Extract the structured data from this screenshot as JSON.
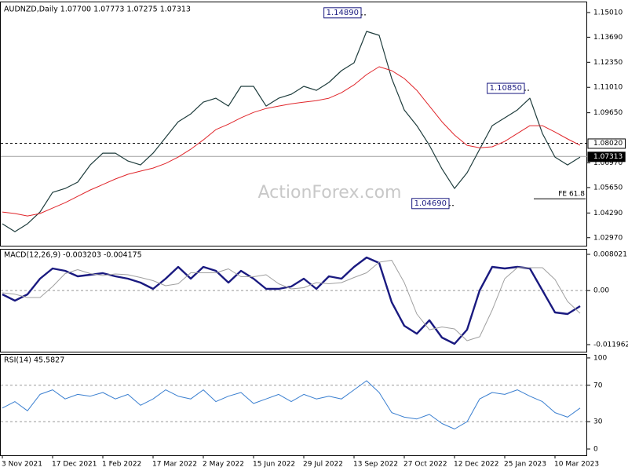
{
  "chart_data": [
    {
      "type": "line",
      "title": "AUDNZD,Daily  1.07700 1.07773 1.07275 1.07313",
      "watermark": "ActionForex.com",
      "categories": [
        "3 Nov 2021",
        null,
        null,
        null,
        "17 Dec 2021",
        null,
        null,
        null,
        "1 Feb 2022",
        null,
        null,
        null,
        "17 Mar 2022",
        null,
        null,
        null,
        "2 May 2022",
        null,
        null,
        null,
        "15 Jun 2022",
        null,
        null,
        null,
        "29 Jul 2022",
        null,
        null,
        null,
        "13 Sep 2022",
        null,
        null,
        null,
        "27 Oct 2022",
        null,
        null,
        null,
        "12 Dec 2022",
        null,
        null,
        null,
        "25 Jan 2023",
        null,
        null,
        null,
        "10 Mar 2023",
        null,
        null
      ],
      "series": [
        {
          "color": "#1e3c3c",
          "width": 1.2,
          "values": [
            1.0371,
            1.0329,
            1.0371,
            1.0434,
            1.0539,
            1.056,
            1.0594,
            1.0686,
            1.0749,
            1.0749,
            1.0707,
            1.0686,
            1.0749,
            1.0833,
            1.0917,
            1.0959,
            1.1022,
            1.1043,
            1.1001,
            1.1106,
            1.1106,
            1.1001,
            1.1043,
            1.1064,
            1.1106,
            1.1085,
            1.1127,
            1.119,
            1.1232,
            1.14,
            1.1379,
            1.1148,
            1.098,
            1.0896,
            1.0791,
            1.0665,
            1.056,
            1.0644,
            1.077,
            1.0896,
            1.0938,
            1.098,
            1.1043,
            1.0854,
            1.0728,
            1.0686,
            1.0728
          ]
        },
        {
          "color": "#e0262b",
          "width": 1,
          "values": [
            1.0434,
            1.0426,
            1.0413,
            1.0426,
            1.0455,
            1.0484,
            1.0518,
            1.0552,
            1.0581,
            1.0611,
            1.0636,
            1.0653,
            1.0669,
            1.0694,
            1.0728,
            1.077,
            1.082,
            1.0875,
            1.0904,
            1.0938,
            1.0967,
            1.0988,
            1.1001,
            1.1013,
            1.1022,
            1.103,
            1.1043,
            1.1072,
            1.1114,
            1.1169,
            1.1211,
            1.119,
            1.1148,
            1.1085,
            1.1001,
            1.0917,
            1.0846,
            1.0791,
            1.0778,
            1.0783,
            1.0812,
            1.0854,
            1.0896,
            1.0896,
            1.0862,
            1.0825,
            1.0791
          ]
        }
      ],
      "ylim": [
        1.0254,
        1.1547
      ],
      "yticks": [
        {
          "value": 1.1501,
          "label": "1.15010"
        },
        {
          "value": 1.1369,
          "label": "1.13690"
        },
        {
          "value": 1.1235,
          "label": "1.12350"
        },
        {
          "value": 1.1101,
          "label": "1.11010"
        },
        {
          "value": 1.0965,
          "label": "1.09650"
        },
        {
          "value": 1.0697,
          "label": "1.06970"
        },
        {
          "value": 1.0565,
          "label": "1.05650"
        },
        {
          "value": 1.0429,
          "label": "1.04290"
        },
        {
          "value": 1.0297,
          "label": "1.02970"
        }
      ],
      "levels": [
        {
          "value": 1.0802,
          "label": "1.08020",
          "style": "dashed"
        },
        {
          "value": 1.07313,
          "label": "1.07313",
          "style": "current"
        },
        {
          "value": 1.0505,
          "label": "FE 61.8",
          "style": "projection"
        }
      ],
      "annotations": [
        {
          "x": 29,
          "value": 1.1489,
          "label": "1.14890"
        },
        {
          "x": 42,
          "value": 1.1085,
          "label": "1.10850"
        },
        {
          "x": 36,
          "value": 1.0469,
          "label": "1.04690"
        }
      ]
    },
    {
      "type": "line",
      "title": "MACD(12,26,9) -0.003203 -0.004175",
      "series": [
        {
          "color": "#1a1a80",
          "width": 2.4,
          "values": [
            -0.00084,
            -0.00223,
            -0.00084,
            0.00263,
            0.00489,
            0.00437,
            0.00315,
            0.0035,
            0.00385,
            0.00315,
            0.00263,
            0.00176,
            0.00037,
            0.00263,
            0.00524,
            0.00263,
            0.00524,
            0.00437,
            0.00176,
            0.00437,
            0.00263,
            0.00037,
            0.00037,
            0.00089,
            0.00263,
            0.00037,
            0.00315,
            0.00263,
            0.00524,
            0.00732,
            0.00611,
            -0.00258,
            -0.0078,
            -0.00954,
            -0.00658,
            -0.0104,
            -0.01179,
            -0.00866,
            2e-05,
            0.00524,
            0.00489,
            0.00524,
            0.00489,
            2e-05,
            -0.00484,
            -0.00519,
            -0.00345
          ]
        },
        {
          "color": "#a0a0a0",
          "width": 1,
          "values": [
            -0.0005,
            -0.0008,
            -0.00154,
            -0.00154,
            0.0009,
            0.00376,
            0.00463,
            0.00376,
            0.00333,
            0.00368,
            0.0035,
            0.00289,
            0.0022,
            0.00107,
            0.0015,
            0.00394,
            0.00394,
            0.00394,
            0.00481,
            0.00307,
            0.00307,
            0.0035,
            0.0015,
            0.00037,
            0.00063,
            0.00176,
            0.0015,
            0.00176,
            0.00289,
            0.00394,
            0.00628,
            0.00672,
            0.00177,
            -0.00519,
            -0.00867,
            -0.00806,
            -0.00849,
            -0.0111,
            -0.01023,
            -0.00432,
            0.00263,
            0.00507,
            0.00507,
            0.00507,
            0.00246,
            -0.00241,
            -0.00502
          ]
        }
      ],
      "ylim": [
        -0.013526,
        0.009064
      ],
      "yticks": [
        0.008021,
        {
          "value": 0,
          "label": "0.00"
        },
        -0.011962
      ],
      "levels": [
        0
      ]
    },
    {
      "type": "line",
      "title": "RSI(14) 45.5827",
      "series": [
        {
          "color": "#3a7fd0",
          "width": 1,
          "values": [
            45,
            52,
            42,
            60,
            65,
            55,
            60,
            58,
            62,
            55,
            60,
            48,
            55,
            65,
            58,
            55,
            65,
            52,
            58,
            62,
            50,
            55,
            60,
            52,
            60,
            55,
            58,
            55,
            65,
            75,
            62,
            40,
            35,
            33,
            38,
            28,
            22,
            30,
            55,
            62,
            60,
            65,
            58,
            52,
            40,
            35,
            45
          ]
        }
      ],
      "ylim": [
        -6.9,
        103.4
      ],
      "yticks": [
        100,
        70,
        30,
        0
      ],
      "levels": [
        70,
        30
      ]
    }
  ]
}
